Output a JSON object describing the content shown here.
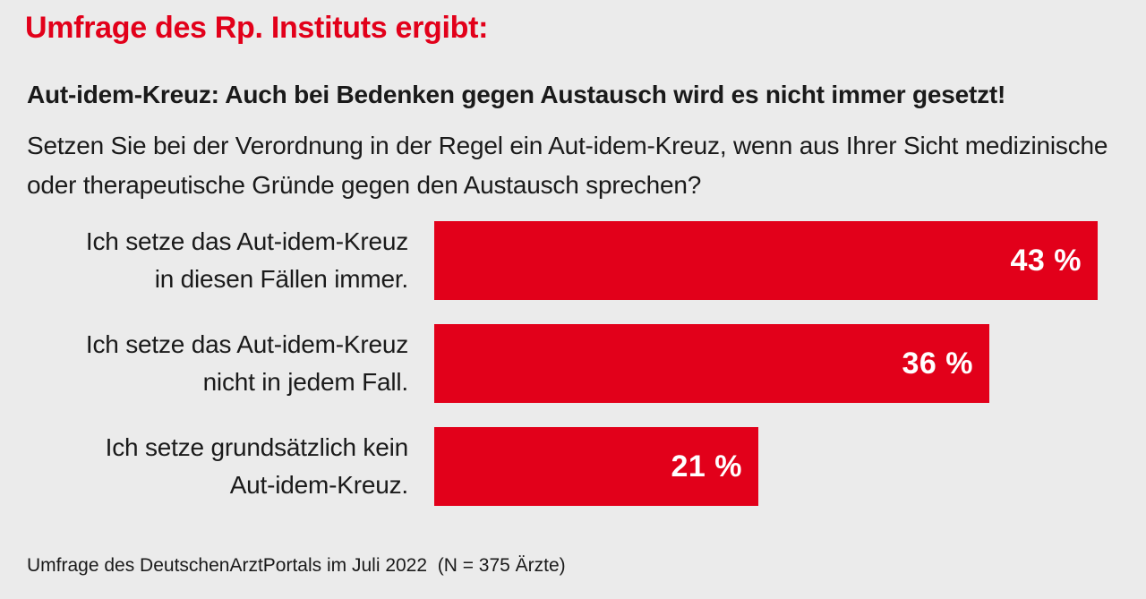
{
  "header": "Umfrage des Rp. Instituts ergibt:",
  "question": {
    "title": "Aut-idem-Kreuz: Auch bei Bedenken gegen Austausch wird es nicht immer gesetzt!",
    "text": "Setzen Sie bei der Verordnung in der Regel ein Aut-idem-Kreuz, wenn aus Ihrer Sicht medizinische oder therapeutische Gründe gegen den Austausch sprechen?"
  },
  "chart_data": {
    "type": "bar",
    "orientation": "horizontal",
    "categories": [
      [
        "Ich setze das Aut-idem-Kreuz",
        "in diesen Fällen immer."
      ],
      [
        "Ich setze das Aut-idem-Kreuz",
        "nicht in jedem Fall."
      ],
      [
        "Ich setze grundsätzlich kein",
        "Aut-idem-Kreuz."
      ]
    ],
    "values": [
      43,
      36,
      21
    ],
    "value_labels": [
      "43 %",
      "36 %",
      "21 %"
    ],
    "unit": "%",
    "bar_color": "#e2001a",
    "grid": false
  },
  "footer": "Umfrage des DeutschenArztPortals im Juli 2022  (N = 375 Ärzte)",
  "colors": {
    "accent": "#e2001a",
    "background": "#ebebeb",
    "text": "#1a1a1a"
  }
}
